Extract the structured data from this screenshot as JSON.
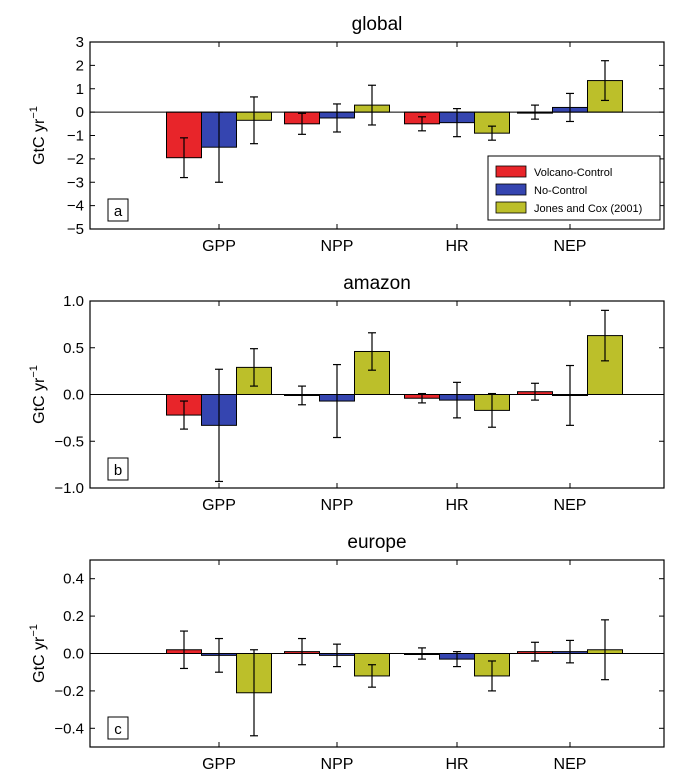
{
  "colors": {
    "volcano_control": "#e8252a",
    "no_control": "#3545b0",
    "jones_cox": "#bcbf2a"
  },
  "legend": {
    "items": [
      {
        "label": "Volcano-Control",
        "color": "#e8252a"
      },
      {
        "label": "No-Control",
        "color": "#3545b0"
      },
      {
        "label": "Jones and Cox (2001)",
        "color": "#bcbf2a"
      }
    ]
  },
  "chart_data": [
    {
      "type": "bar",
      "title": "global",
      "panel_label": "a",
      "ylabel_base": "GtC yr",
      "ylabel_sup": "−1",
      "ylim": [
        -5,
        3
      ],
      "yticks": [
        -5,
        -4,
        -3,
        -2,
        -1,
        0,
        1,
        2,
        3
      ],
      "ytick_labels": [
        "−5",
        "−4",
        "−3",
        "−2",
        "−1",
        "0",
        "1",
        "2",
        "3"
      ],
      "categories": [
        "GPP",
        "NPP",
        "HR",
        "NEP"
      ],
      "legend_placement": "lower-right",
      "series": [
        {
          "name": "Volcano-Control",
          "values": [
            -1.95,
            -0.5,
            -0.5,
            0.0
          ],
          "err": [
            0.85,
            0.45,
            0.3,
            0.3
          ]
        },
        {
          "name": "No-Control",
          "values": [
            -1.5,
            -0.25,
            -0.45,
            0.2
          ],
          "err": [
            1.5,
            0.6,
            0.6,
            0.6
          ]
        },
        {
          "name": "Jones and Cox (2001)",
          "values": [
            -0.35,
            0.3,
            -0.9,
            1.35
          ],
          "err": [
            1.0,
            0.85,
            0.3,
            0.85
          ]
        }
      ]
    },
    {
      "type": "bar",
      "title": "amazon",
      "panel_label": "b",
      "ylabel_base": "GtC yr",
      "ylabel_sup": "−1",
      "ylim": [
        -1.0,
        1.0
      ],
      "yticks": [
        -1.0,
        -0.5,
        0.0,
        0.5,
        1.0
      ],
      "ytick_labels": [
        "−1.0",
        "−0.5",
        "0.0",
        "0.5",
        "1.0"
      ],
      "categories": [
        "GPP",
        "NPP",
        "HR",
        "NEP"
      ],
      "series": [
        {
          "name": "Volcano-Control",
          "values": [
            -0.22,
            -0.01,
            -0.04,
            0.03
          ],
          "err": [
            0.15,
            0.1,
            0.05,
            0.09
          ]
        },
        {
          "name": "No-Control",
          "values": [
            -0.33,
            -0.07,
            -0.06,
            -0.01
          ],
          "err": [
            0.6,
            0.39,
            0.19,
            0.32
          ]
        },
        {
          "name": "Jones and Cox (2001)",
          "values": [
            0.29,
            0.46,
            -0.17,
            0.63
          ],
          "err": [
            0.2,
            0.2,
            0.18,
            0.27
          ]
        }
      ]
    },
    {
      "type": "bar",
      "title": "europe",
      "panel_label": "c",
      "ylabel_base": "GtC yr",
      "ylabel_sup": "−1",
      "ylim": [
        -0.5,
        0.5
      ],
      "yticks": [
        -0.4,
        -0.2,
        0.0,
        0.2,
        0.4
      ],
      "ytick_labels": [
        "−0.4",
        "−0.2",
        "0.0",
        "0.2",
        "0.4"
      ],
      "categories": [
        "GPP",
        "NPP",
        "HR",
        "NEP"
      ],
      "series": [
        {
          "name": "Volcano-Control",
          "values": [
            0.02,
            0.01,
            0.0,
            0.01
          ],
          "err": [
            0.1,
            0.07,
            0.03,
            0.05
          ]
        },
        {
          "name": "No-Control",
          "values": [
            -0.01,
            -0.01,
            -0.03,
            0.01
          ],
          "err": [
            0.09,
            0.06,
            0.04,
            0.06
          ]
        },
        {
          "name": "Jones and Cox (2001)",
          "values": [
            -0.21,
            -0.12,
            -0.12,
            0.02
          ],
          "err": [
            0.23,
            0.06,
            0.08,
            0.16
          ]
        }
      ]
    }
  ]
}
